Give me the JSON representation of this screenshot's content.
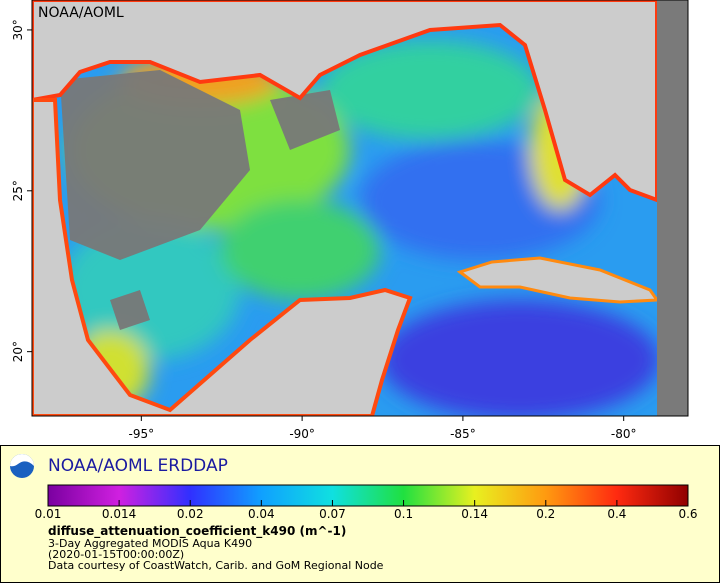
{
  "map": {
    "watermark": "NOAA/AOML",
    "lonlim": [
      -98.4,
      -78.0
    ],
    "latlim": [
      18.0,
      30.93
    ],
    "lat_ticks": [
      {
        "value": 30,
        "label": "30°"
      },
      {
        "value": 25,
        "label": "25°"
      },
      {
        "value": 20,
        "label": "20°"
      }
    ],
    "lon_ticks": [
      {
        "value": -95,
        "label": "-95°"
      },
      {
        "value": -90,
        "label": "-90°"
      },
      {
        "value": -85,
        "label": "-85°"
      },
      {
        "value": -80,
        "label": "-80°"
      }
    ]
  },
  "legend": {
    "title": "NOAA/AOML ERDDAP",
    "colorbar": {
      "colors": [
        "#7a00a0",
        "#d020e0",
        "#3030ff",
        "#10a0ff",
        "#10e0e0",
        "#20e040",
        "#e8f020",
        "#ff9a10",
        "#ff2a10",
        "#900000"
      ],
      "ticks": [
        0.01,
        0.014,
        0.02,
        0.04,
        0.07,
        0.1,
        0.14,
        0.2,
        0.4,
        0.6
      ]
    },
    "variable": "diffuse_attenuation_coefficient_k490 (m^-1)",
    "lines": [
      "3-Day Aggregated MODIS Aqua K490",
      "(2020-01-15T00:00:00Z)",
      "Data courtesy of CoastWatch, Carib. and GoM Regional Node"
    ]
  }
}
